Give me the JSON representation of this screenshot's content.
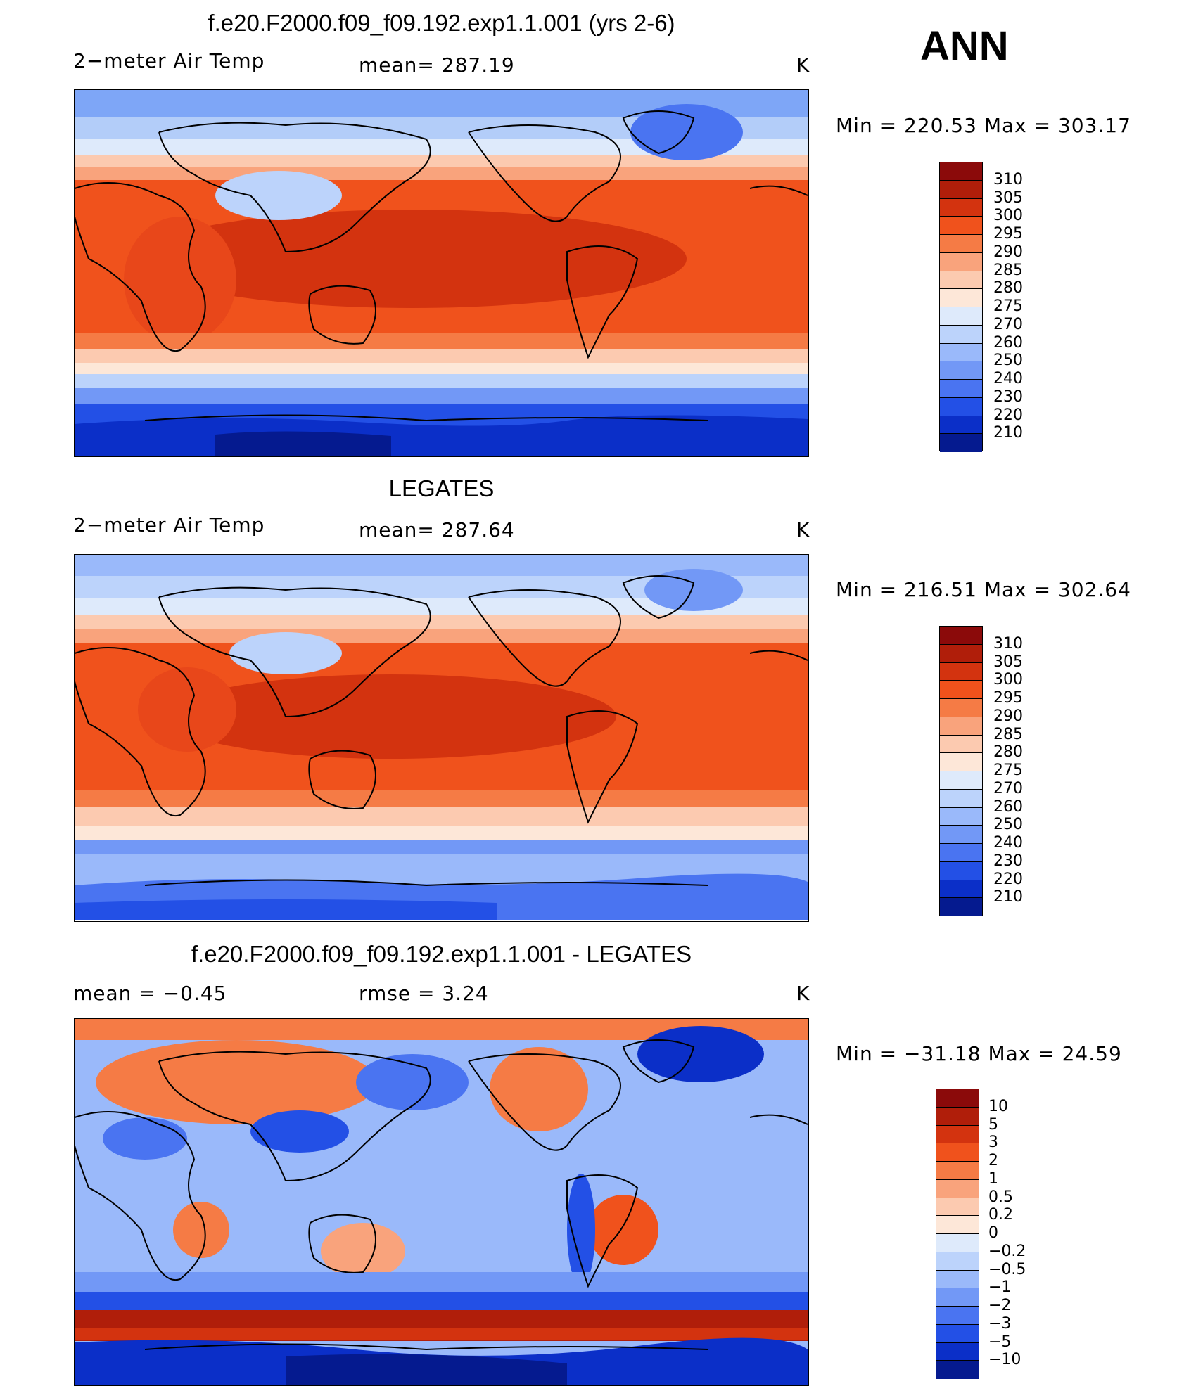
{
  "season": "ANN",
  "panels": [
    {
      "title": "f.e20.F2000.f09_f09.192.exp1.1.001 (yrs 2-6)",
      "left_label": "2−meter Air Temp",
      "mid_label": "mean=  287.19",
      "units": "K",
      "minmax": "Min  =  220.53  Max  =  303.17",
      "colorbar": {
        "labels": [
          "310",
          "305",
          "300",
          "295",
          "290",
          "285",
          "280",
          "275",
          "270",
          "260",
          "250",
          "240",
          "230",
          "220",
          "210"
        ],
        "colors": [
          "#8b0a0a",
          "#b01e0a",
          "#d3330f",
          "#f0521c",
          "#f57b45",
          "#f9a37c",
          "#fccab0",
          "#fde7d8",
          "#deeafb",
          "#bcd3fb",
          "#9ab9fa",
          "#7298f6",
          "#4a74f1",
          "#2350e6",
          "#0b2fc8",
          "#051a8f"
        ]
      }
    },
    {
      "title": "LEGATES",
      "left_label": "2−meter Air Temp",
      "mid_label": "mean=  287.64",
      "units": "K",
      "minmax": "Min  =  216.51  Max  =  302.64",
      "colorbar": {
        "labels": [
          "310",
          "305",
          "300",
          "295",
          "290",
          "285",
          "280",
          "275",
          "270",
          "260",
          "250",
          "240",
          "230",
          "220",
          "210"
        ],
        "colors": [
          "#8b0a0a",
          "#b01e0a",
          "#d3330f",
          "#f0521c",
          "#f57b45",
          "#f9a37c",
          "#fccab0",
          "#fde7d8",
          "#deeafb",
          "#bcd3fb",
          "#9ab9fa",
          "#7298f6",
          "#4a74f1",
          "#2350e6",
          "#0b2fc8",
          "#051a8f"
        ]
      }
    },
    {
      "title": "f.e20.F2000.f09_f09.192.exp1.1.001 - LEGATES",
      "left_label": "mean  =     −0.45",
      "mid_label": "rmse  =      3.24",
      "units": "K",
      "minmax": "Min  =  −31.18  Max  =     24.59",
      "colorbar": {
        "labels": [
          "10",
          "5",
          "3",
          "2",
          "1",
          "0.5",
          "0.2",
          "0",
          "−0.2",
          "−0.5",
          "−1",
          "−2",
          "−3",
          "−5",
          "−10"
        ],
        "colors": [
          "#8b0a0a",
          "#b01e0a",
          "#d3330f",
          "#f0521c",
          "#f57b45",
          "#f9a37c",
          "#fccab0",
          "#fde7d8",
          "#deeafb",
          "#bcd3fb",
          "#9ab9fa",
          "#7298f6",
          "#4a74f1",
          "#2350e6",
          "#0b2fc8",
          "#051a8f"
        ]
      }
    }
  ]
}
